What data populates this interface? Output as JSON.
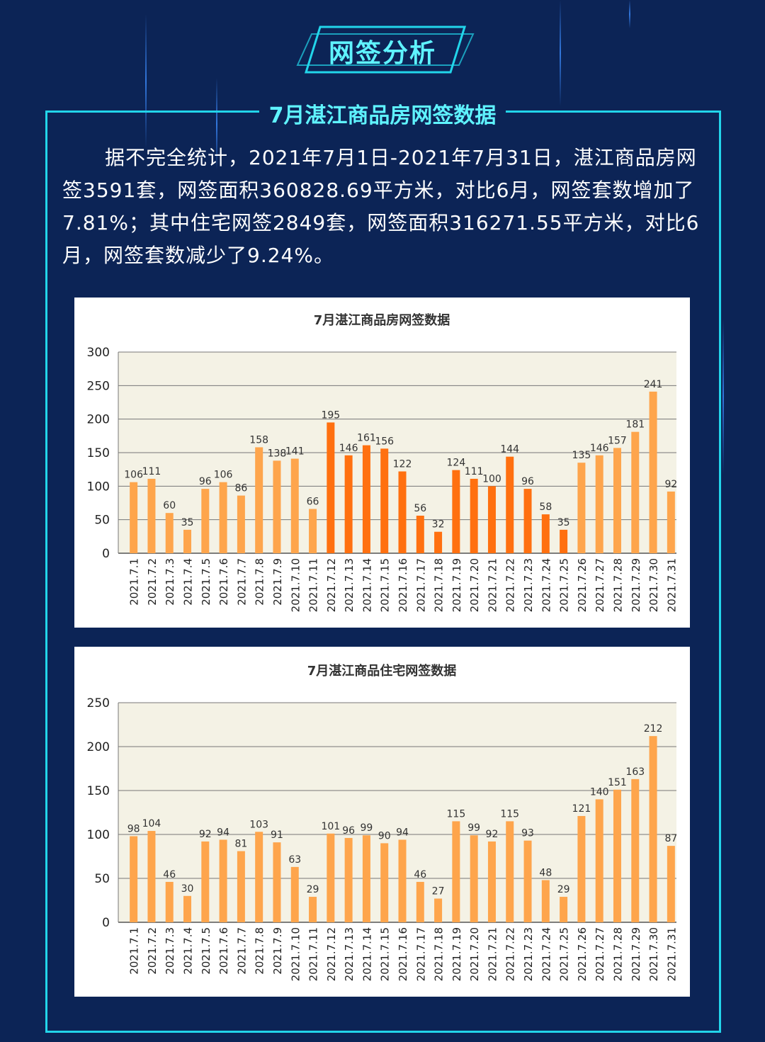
{
  "page": {
    "tag_title": "网签分析",
    "section_title": "7月湛江商品房网签数据",
    "intro": "据不完全统计，2021年7月1日-2021年7月31日，湛江商品房网签3591套，网签面积360828.69平方米，对比6月，网签套数增加了7.81%；其中住宅网签2849套，网签面积316271.55平方米，对比6月，网签套数减少了9.24%。",
    "colors": {
      "background": "#0c2456",
      "accent": "#22d5ea",
      "bar_light": "#fea54c",
      "bar_dark": "#ff7010"
    }
  },
  "chart_data": [
    {
      "type": "bar",
      "title": "7月湛江商品房网签数据",
      "categories": [
        "2021.7.1",
        "2021.7.2",
        "2021.7.3",
        "2021.7.4",
        "2021.7.5",
        "2021.7.6",
        "2021.7.7",
        "2021.7.8",
        "2021.7.9",
        "2021.7.10",
        "2021.7.11",
        "2021.7.12",
        "2021.7.13",
        "2021.7.14",
        "2021.7.15",
        "2021.7.16",
        "2021.7.17",
        "2021.7.18",
        "2021.7.19",
        "2021.7.20",
        "2021.7.21",
        "2021.7.22",
        "2021.7.23",
        "2021.7.24",
        "2021.7.25",
        "2021.7.26",
        "2021.7.27",
        "2021.7.28",
        "2021.7.29",
        "2021.7.30",
        "2021.7.31"
      ],
      "values": [
        106,
        111,
        60,
        35,
        96,
        106,
        86,
        158,
        138,
        141,
        66,
        195,
        146,
        161,
        156,
        122,
        56,
        32,
        124,
        111,
        100,
        144,
        96,
        58,
        35,
        135,
        146,
        157,
        181,
        241,
        92
      ],
      "highlight_range": [
        11,
        24
      ],
      "ylim": [
        0,
        300
      ],
      "yticks": [
        0,
        50,
        100,
        150,
        200,
        250,
        300
      ],
      "xlabel": "",
      "ylabel": "",
      "grid": true,
      "legend": "none"
    },
    {
      "type": "bar",
      "title": "7月湛江商品住宅网签数据",
      "categories": [
        "2021.7.1",
        "2021.7.2",
        "2021.7.3",
        "2021.7.4",
        "2021.7.5",
        "2021.7.6",
        "2021.7.7",
        "2021.7.8",
        "2021.7.9",
        "2021.7.10",
        "2021.7.11",
        "2021.7.12",
        "2021.7.13",
        "2021.7.14",
        "2021.7.15",
        "2021.7.16",
        "2021.7.17",
        "2021.7.18",
        "2021.7.19",
        "2021.7.20",
        "2021.7.21",
        "2021.7.22",
        "2021.7.23",
        "2021.7.24",
        "2021.7.25",
        "2021.7.26",
        "2021.7.27",
        "2021.7.28",
        "2021.7.29",
        "2021.7.30",
        "2021.7.31"
      ],
      "values": [
        98,
        104,
        46,
        30,
        92,
        94,
        81,
        103,
        91,
        63,
        29,
        101,
        96,
        99,
        90,
        94,
        46,
        27,
        115,
        99,
        92,
        115,
        93,
        48,
        29,
        121,
        140,
        151,
        163,
        212,
        87
      ],
      "highlight_range": [],
      "ylim": [
        0,
        250
      ],
      "yticks": [
        0,
        50,
        100,
        150,
        200,
        250
      ],
      "xlabel": "",
      "ylabel": "",
      "grid": true,
      "legend": "none"
    }
  ]
}
